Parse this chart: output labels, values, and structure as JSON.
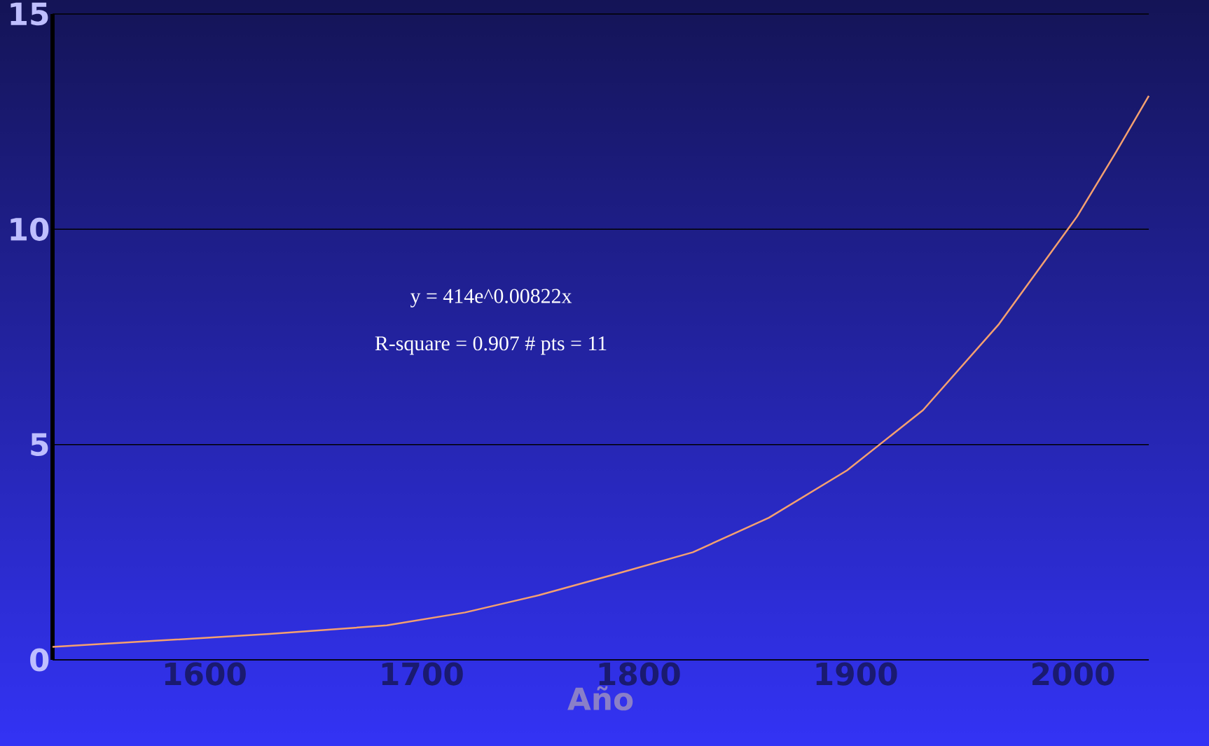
{
  "chart_data": {
    "type": "line",
    "xlabel": "Año",
    "annotations": [
      "y = 414e^0.00822x",
      "R-square = 0.907   # pts = 11"
    ],
    "series": [
      {
        "color": "#f4a070",
        "x": [
          1530,
          1580,
          1630,
          1684,
          1720,
          1754,
          1790,
          1825,
          1860,
          1896,
          1931,
          1966,
          2002,
          2020,
          2035
        ],
        "values": [
          0.3,
          0.45,
          0.6,
          0.8,
          1.1,
          1.5,
          2.0,
          2.5,
          3.3,
          4.4,
          5.8,
          7.8,
          10.3,
          11.8,
          13.1
        ]
      }
    ],
    "xlim": [
      1530,
      2035
    ],
    "xticks": [
      1600,
      1700,
      1800,
      1900,
      2000
    ],
    "ylim": [
      0,
      15
    ],
    "yticks": [
      0,
      5,
      10,
      15
    ],
    "grid": "y",
    "marker": "none",
    "line_style": "solid"
  }
}
